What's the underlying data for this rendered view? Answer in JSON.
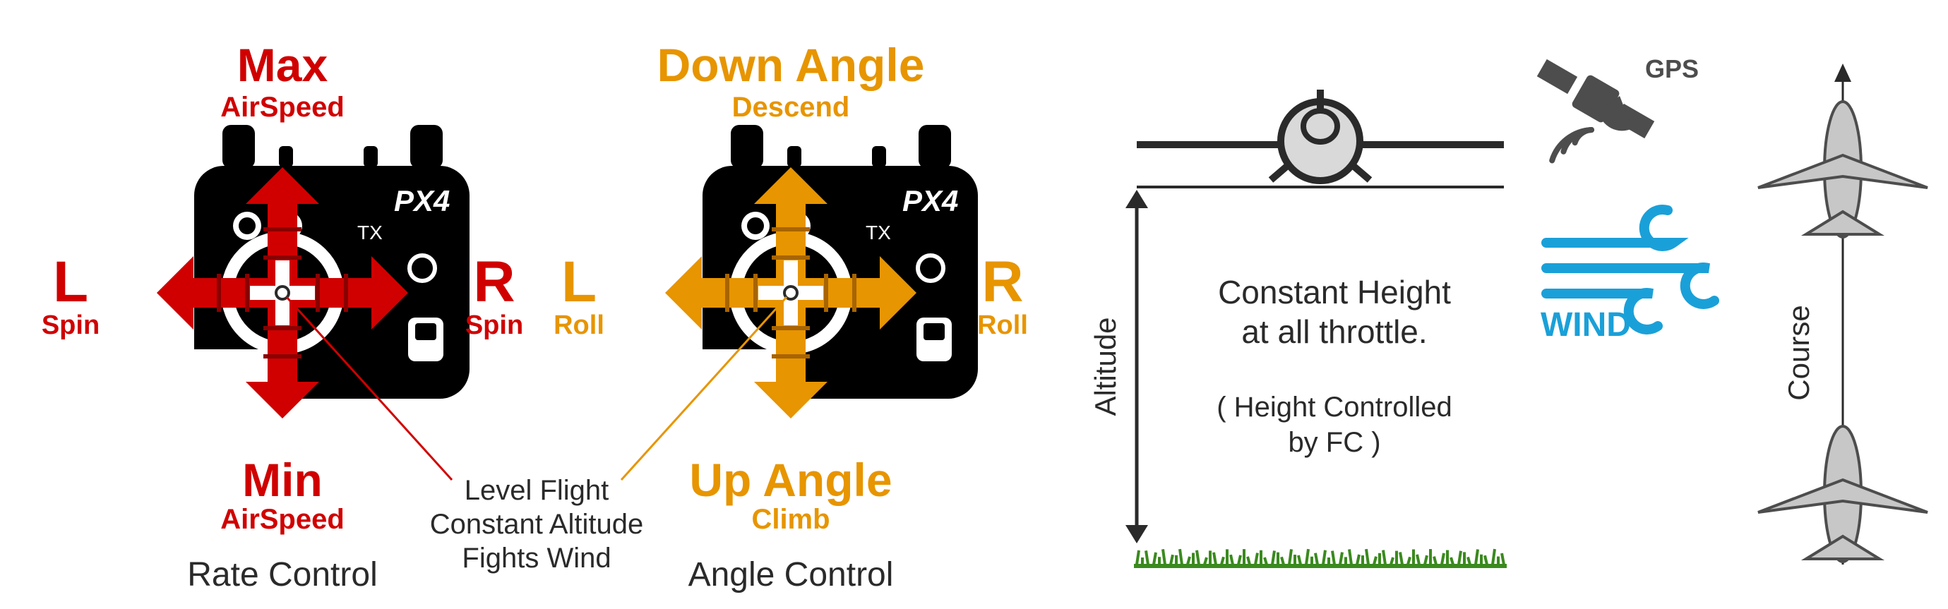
{
  "colors": {
    "red": "#d00000",
    "orange": "#e79500",
    "black": "#000000",
    "dark": "#2a2a2a",
    "gray": "#4d4d4d",
    "lightgray": "#d9d9d9",
    "planegray": "#c7c7c7",
    "wind": "#1aa0d8",
    "grass": "#3a8a1e",
    "white": "#ffffff"
  },
  "left": {
    "stick_type": "rate_control",
    "px4": "PX4",
    "tx": "TX",
    "top_big": "Max",
    "top_small": "AirSpeed",
    "bottom_big": "Min",
    "bottom_small": "AirSpeed",
    "left_big": "L",
    "left_small": "Spin",
    "right_big": "R",
    "right_small": "Spin",
    "caption": "Rate Control",
    "arrow_color": "#d00000",
    "label_color": "#d00000"
  },
  "right": {
    "stick_type": "angle_control",
    "px4": "PX4",
    "tx": "TX",
    "top_big": "Down Angle",
    "top_small": "Descend",
    "bottom_big": "Up Angle",
    "bottom_small": "Climb",
    "left_big": "L",
    "left_small": "Roll",
    "right_big": "R",
    "right_small": "Roll",
    "caption": "Angle Control",
    "arrow_color": "#e79500",
    "label_color": "#e79500"
  },
  "center_note": {
    "line1": "Level Flight",
    "line2": "Constant Altitude",
    "line3": "Fights Wind"
  },
  "altitude": {
    "label": "Altitude",
    "text1": "Constant Height",
    "text2": "at all throttle.",
    "text3": "( Height Controlled",
    "text4": "by FC )"
  },
  "gps": {
    "label": "GPS"
  },
  "wind": {
    "label": "WIND"
  },
  "course": {
    "label": "Course"
  },
  "geometry": {
    "stick_body_w": 390,
    "stick_body_h": 350,
    "arrow_head": 40,
    "arrow_shaft_w": 46,
    "arrow_len": 175,
    "font_big": 62,
    "font_huge": 80,
    "font_med": 42,
    "font_caption": 46
  }
}
